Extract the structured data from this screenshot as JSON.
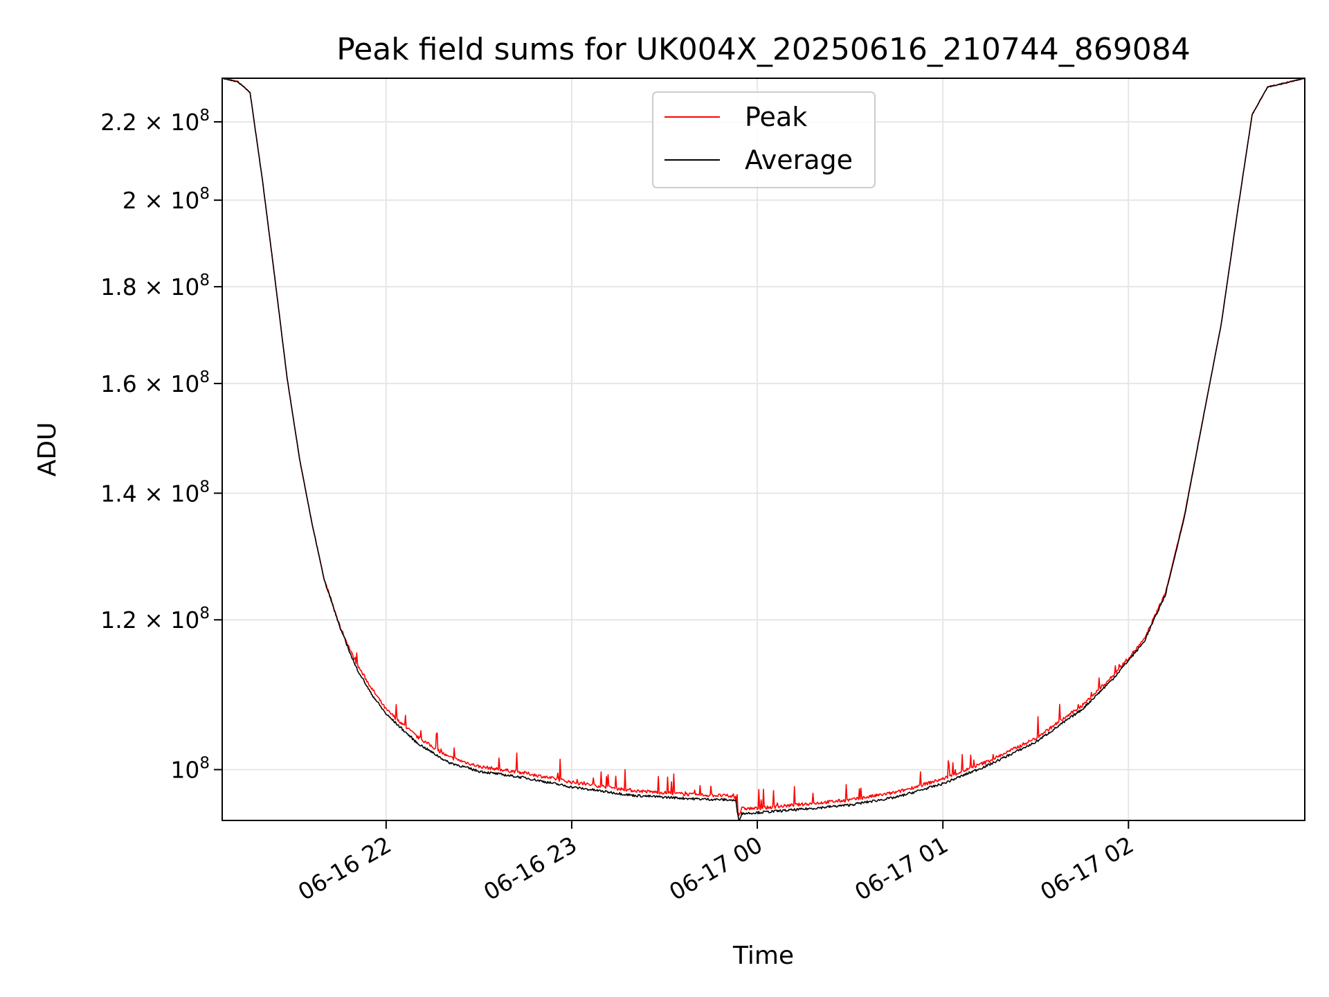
{
  "chart_data": {
    "type": "line",
    "title": "Peak field sums for UK004X_20250616_210744_869084",
    "xlabel": "Time",
    "ylabel": "ADU",
    "yscale": "log",
    "grid": true,
    "legend_position": "top-center",
    "xlim": [
      "2025-06-16 21:07",
      "2025-06-17 02:57"
    ],
    "ylim": [
      94000000,
      232000000
    ],
    "x_ticks": [
      "2025-06-16 22:00",
      "2025-06-16 23:00",
      "2025-06-17 00:00",
      "2025-06-17 01:00",
      "2025-06-17 02:00"
    ],
    "x_tick_labels": [
      "06-16 22",
      "06-16 23",
      "06-17 00",
      "06-17 01",
      "06-17 02"
    ],
    "y_ticks": [
      100000000,
      120000000,
      140000000,
      160000000,
      180000000,
      200000000,
      220000000
    ],
    "y_tick_labels": [
      {
        "mantissa": "",
        "exp": "8"
      },
      {
        "mantissa": "1.2 × ",
        "exp": "8"
      },
      {
        "mantissa": "1.4 × ",
        "exp": "8"
      },
      {
        "mantissa": "1.6 × ",
        "exp": "8"
      },
      {
        "mantissa": "1.8 × ",
        "exp": "8"
      },
      {
        "mantissa": "2 × ",
        "exp": "8"
      },
      {
        "mantissa": "2.2 × ",
        "exp": "8"
      }
    ],
    "y_tick_base": "10",
    "x": [
      "2025-06-16 21:07",
      "2025-06-16 21:12",
      "2025-06-16 21:16",
      "2025-06-16 21:20",
      "2025-06-16 21:24",
      "2025-06-16 21:28",
      "2025-06-16 21:32",
      "2025-06-16 21:36",
      "2025-06-16 21:40",
      "2025-06-16 21:45",
      "2025-06-16 21:50",
      "2025-06-16 21:55",
      "2025-06-16 22:00",
      "2025-06-16 22:10",
      "2025-06-16 22:20",
      "2025-06-16 22:30",
      "2025-06-16 22:45",
      "2025-06-16 23:00",
      "2025-06-16 23:20",
      "2025-06-16 23:40",
      "2025-06-16 23:50",
      "2025-06-16 23:53",
      "2025-06-16 23:54",
      "2025-06-16 23:55",
      "2025-06-17 00:00",
      "2025-06-17 00:15",
      "2025-06-17 00:30",
      "2025-06-17 00:45",
      "2025-06-17 01:00",
      "2025-06-17 01:15",
      "2025-06-17 01:30",
      "2025-06-17 01:45",
      "2025-06-17 01:55",
      "2025-06-17 02:05",
      "2025-06-17 02:12",
      "2025-06-17 02:18",
      "2025-06-17 02:25",
      "2025-06-17 02:30",
      "2025-06-17 02:35",
      "2025-06-17 02:40",
      "2025-06-17 02:45",
      "2025-06-17 02:50",
      "2025-06-17 02:57"
    ],
    "series": [
      {
        "name": "Peak",
        "color": "#ff0000",
        "noise": "upward-spikes",
        "values": [
          232000000,
          231000000,
          228000000,
          205000000,
          182000000,
          161000000,
          146000000,
          135000000,
          126000000,
          119000000,
          114000000,
          110500000,
          107500000,
          104000000,
          101500000,
          100300000,
          99500000,
          98400000,
          97400000,
          96900000,
          96800000,
          96600000,
          94500000,
          95300000,
          95300000,
          95800000,
          96300000,
          97200000,
          98800000,
          101000000,
          103800000,
          108000000,
          112000000,
          117000000,
          124000000,
          136000000,
          156000000,
          172000000,
          196000000,
          222000000,
          229500000,
          230500000,
          232000000
        ]
      },
      {
        "name": "Average",
        "color": "#000000",
        "noise": "small",
        "values": [
          232000000,
          231000000,
          228000000,
          205000000,
          182000000,
          161000000,
          146000000,
          135000000,
          126000000,
          119000000,
          113500000,
          109800000,
          107000000,
          103300000,
          100900000,
          99800000,
          99000000,
          97900000,
          96900000,
          96500000,
          96400000,
          96300000,
          94000000,
          94800000,
          94900000,
          95300000,
          95800000,
          96700000,
          98300000,
          100600000,
          103400000,
          107600000,
          111700000,
          116800000,
          123800000,
          135800000,
          156000000,
          172000000,
          196000000,
          222000000,
          229500000,
          230500000,
          232000000
        ]
      }
    ]
  }
}
